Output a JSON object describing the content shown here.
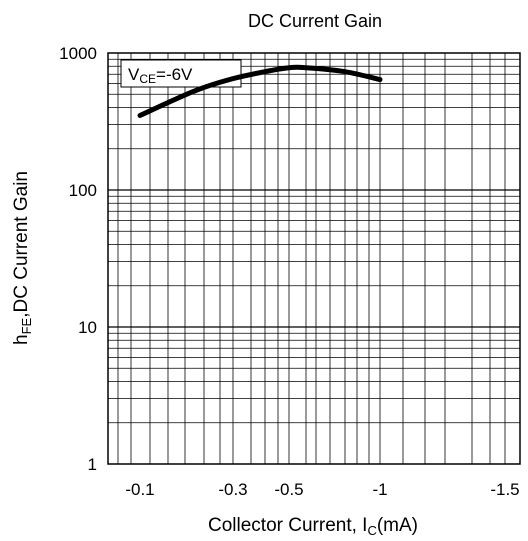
{
  "chart_data": {
    "type": "line",
    "title": "DC Current Gain",
    "xlabel": {
      "main": "Collector Current, I",
      "sub": "C",
      "suffix": "(mA)"
    },
    "ylabel": {
      "main": "h",
      "sub": "FE",
      "suffix": ",DC Current Gain"
    },
    "y_scale": "log",
    "ylim": [
      1,
      1000
    ],
    "y_ticks": [
      {
        "value": 1,
        "label": "1"
      },
      {
        "value": 10,
        "label": "10"
      },
      {
        "value": 100,
        "label": "100"
      },
      {
        "value": 1000,
        "label": "1000"
      }
    ],
    "x_ticks": [
      "-0.1",
      "-0.3",
      "-0.5",
      "-1",
      "-1.5"
    ],
    "grid": true,
    "annotation": {
      "main": "V",
      "sub": "CE",
      "suffix": "=-6V"
    },
    "series": [
      {
        "x": [
          -0.1,
          -0.2,
          -0.3,
          -0.4,
          -0.5,
          -0.6,
          -0.8,
          -1
        ],
        "y": [
          350,
          530,
          650,
          730,
          780,
          780,
          730,
          640
        ]
      }
    ],
    "line_color": "#000000"
  }
}
